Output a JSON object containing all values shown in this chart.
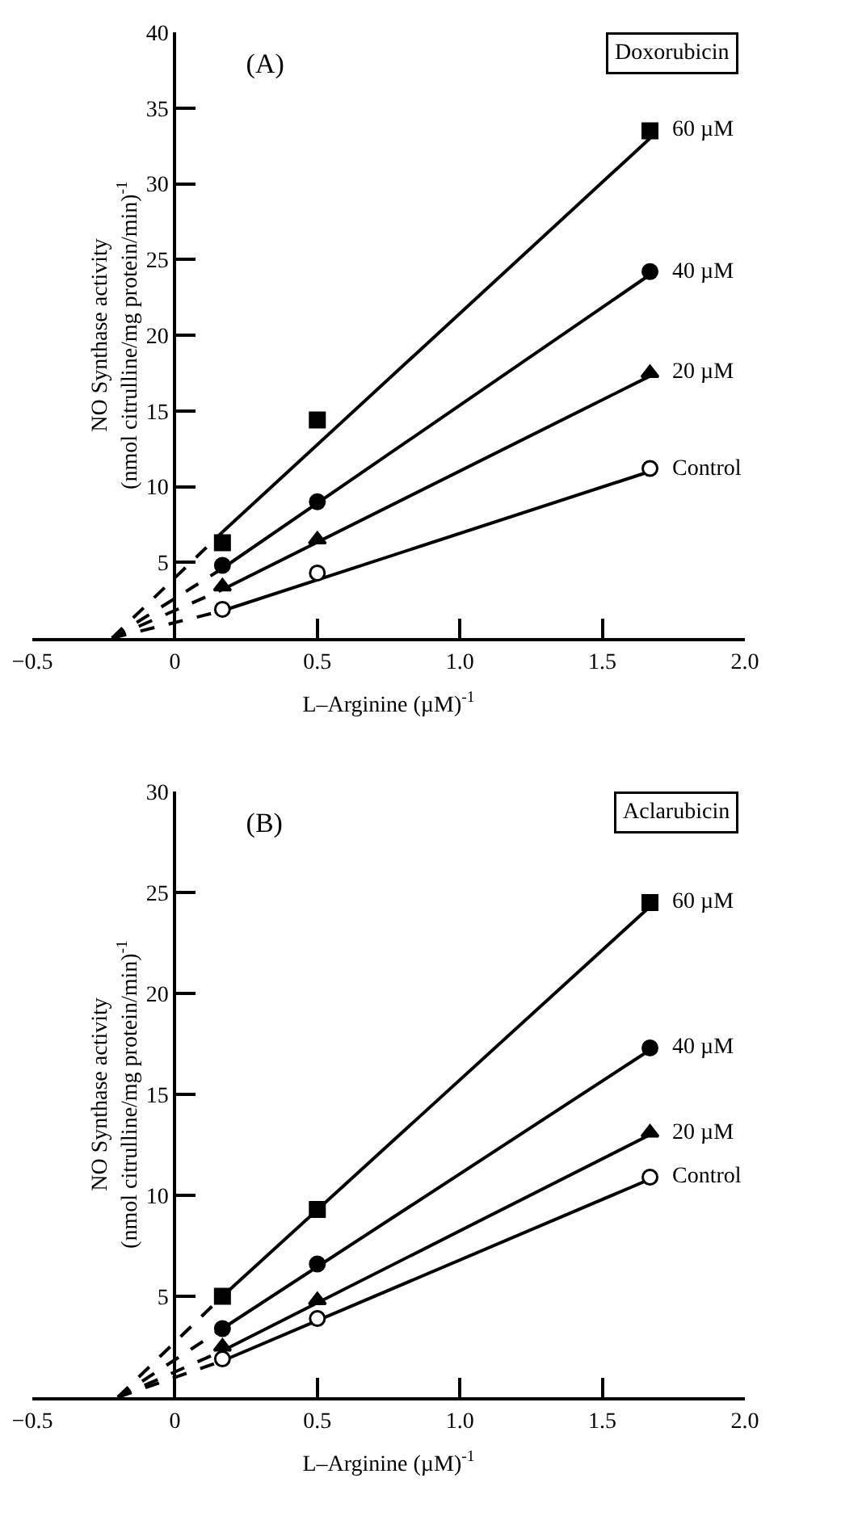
{
  "chart_data": [
    {
      "type": "scatter",
      "title": "(A)",
      "annotations": [
        "Doxorubicin"
      ],
      "xlabel": "L–Arginine (µM)$^{-1}$",
      "ylabel": "NO Synthase activity\n(nmol citrulline/mg protein/min)$^{-1}$",
      "xlim": [
        -0.5,
        2.0
      ],
      "xticks": [
        {
          "value": -0.5,
          "label": "−0.5"
        },
        0,
        0.5,
        {
          "value": 1,
          "label": "1.0"
        },
        1.5,
        {
          "value": 2,
          "label": "2.0"
        }
      ],
      "ylim": [
        0,
        40
      ],
      "yticks": [
        5,
        10,
        15,
        20,
        25,
        30,
        35,
        40
      ],
      "grid": false,
      "legend": false,
      "series": [
        {
          "type": "line",
          "color": "#000000",
          "line_style": "dashed",
          "x": [
            -0.22,
            0.167
          ],
          "values": [
            0,
            1.8
          ]
        },
        {
          "type": "line",
          "color": "#000000",
          "line_style": "solid",
          "x": [
            0.167,
            1.667
          ],
          "values": [
            1.8,
            11.0
          ]
        },
        {
          "type": "line",
          "color": "#000000",
          "line_style": "dashed",
          "x": [
            -0.22,
            0.167
          ],
          "values": [
            0,
            3.2
          ]
        },
        {
          "type": "line",
          "color": "#000000",
          "line_style": "solid",
          "x": [
            0.167,
            1.667
          ],
          "values": [
            3.2,
            17.3
          ]
        },
        {
          "type": "line",
          "color": "#000000",
          "line_style": "dashed",
          "x": [
            -0.22,
            0.167
          ],
          "values": [
            0,
            4.6
          ]
        },
        {
          "type": "line",
          "color": "#000000",
          "line_style": "solid",
          "x": [
            0.167,
            1.667
          ],
          "values": [
            4.6,
            24.0
          ]
        },
        {
          "type": "line",
          "color": "#000000",
          "line_style": "dashed",
          "x": [
            -0.22,
            0.167
          ],
          "values": [
            0,
            7.0
          ]
        },
        {
          "type": "line",
          "color": "#000000",
          "line_style": "solid",
          "x": [
            0.167,
            1.667
          ],
          "values": [
            7.0,
            33.0
          ]
        },
        {
          "type": "scatter",
          "name": "Control",
          "color": "#ffffff",
          "marker": "circle",
          "x": [
            0.167,
            0.5,
            1.667
          ],
          "values": [
            1.9,
            4.3,
            11.2
          ]
        },
        {
          "type": "scatter",
          "name": "20 µM",
          "color": "#000000",
          "marker": "triangle",
          "x": [
            0.167,
            0.5,
            1.667
          ],
          "values": [
            3.4,
            6.5,
            17.5
          ]
        },
        {
          "type": "scatter",
          "name": "40 µM",
          "color": "#000000",
          "marker": "circle",
          "x": [
            0.167,
            0.5,
            1.667
          ],
          "values": [
            4.8,
            9.0,
            24.2
          ]
        },
        {
          "type": "scatter",
          "name": "60 µM",
          "color": "#000000",
          "marker": "square",
          "x": [
            0.167,
            0.5,
            1.667
          ],
          "values": [
            6.3,
            14.4,
            33.5
          ]
        }
      ]
    },
    {
      "type": "scatter",
      "title": "(B)",
      "annotations": [
        "Aclarubicin"
      ],
      "xlabel": "L–Arginine (µM)$^{-1}$",
      "ylabel": "NO Synthase activity\n(nmol citrulline/mg protein/min)$^{-1}$",
      "xlim": [
        -0.5,
        2.0
      ],
      "xticks": [
        {
          "value": -0.5,
          "label": "−0.5"
        },
        0,
        0.5,
        {
          "value": 1,
          "label": "1.0"
        },
        1.5,
        {
          "value": 2,
          "label": "2.0"
        }
      ],
      "ylim": [
        0,
        30
      ],
      "yticks": [
        5,
        10,
        15,
        20,
        25,
        30
      ],
      "grid": false,
      "legend": false,
      "series": [
        {
          "type": "line",
          "color": "#000000",
          "line_style": "dashed",
          "x": [
            -0.2,
            0.167
          ],
          "values": [
            0,
            1.8
          ]
        },
        {
          "type": "line",
          "color": "#000000",
          "line_style": "solid",
          "x": [
            0.167,
            1.667
          ],
          "values": [
            1.8,
            10.8
          ]
        },
        {
          "type": "line",
          "color": "#000000",
          "line_style": "dashed",
          "x": [
            -0.2,
            0.167
          ],
          "values": [
            0,
            2.3
          ]
        },
        {
          "type": "line",
          "color": "#000000",
          "line_style": "solid",
          "x": [
            0.167,
            1.667
          ],
          "values": [
            2.3,
            13.0
          ]
        },
        {
          "type": "line",
          "color": "#000000",
          "line_style": "dashed",
          "x": [
            -0.2,
            0.167
          ],
          "values": [
            0,
            3.4
          ]
        },
        {
          "type": "line",
          "color": "#000000",
          "line_style": "solid",
          "x": [
            0.167,
            1.667
          ],
          "values": [
            3.4,
            17.2
          ]
        },
        {
          "type": "line",
          "color": "#000000",
          "line_style": "dashed",
          "x": [
            -0.2,
            0.167
          ],
          "values": [
            0,
            5.0
          ]
        },
        {
          "type": "line",
          "color": "#000000",
          "line_style": "solid",
          "x": [
            0.167,
            1.667
          ],
          "values": [
            5.0,
            24.3
          ]
        },
        {
          "type": "scatter",
          "name": "Control",
          "color": "#ffffff",
          "marker": "circle",
          "x": [
            0.167,
            0.5,
            1.667
          ],
          "values": [
            1.9,
            3.9,
            10.9
          ]
        },
        {
          "type": "scatter",
          "name": "20 µM",
          "color": "#000000",
          "marker": "triangle",
          "x": [
            0.167,
            0.5,
            1.667
          ],
          "values": [
            2.5,
            4.8,
            13.1
          ]
        },
        {
          "type": "scatter",
          "name": "40 µM",
          "color": "#000000",
          "marker": "circle",
          "x": [
            0.167,
            0.5,
            1.667
          ],
          "values": [
            3.4,
            6.6,
            17.3
          ]
        },
        {
          "type": "scatter",
          "name": "60 µM",
          "color": "#000000",
          "marker": "square",
          "x": [
            0.167,
            0.5,
            1.667
          ],
          "values": [
            5.0,
            9.3,
            24.5
          ]
        }
      ]
    }
  ]
}
